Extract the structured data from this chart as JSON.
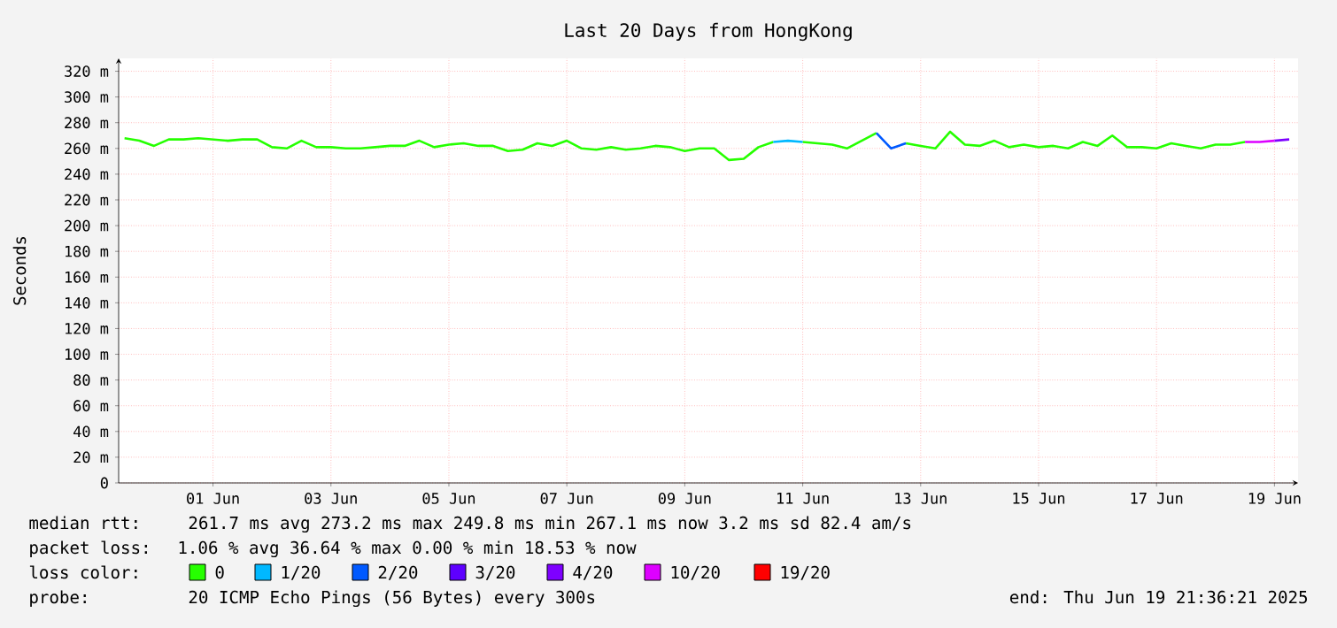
{
  "chart_data": {
    "type": "line",
    "title": "Last 20 Days from HongKong",
    "ylabel": "Seconds",
    "legend_title": "loss color:",
    "legend": "bottom",
    "grid": true,
    "marker": "none",
    "line_style": "solid",
    "xlim": [
      "2025-05-30T21:36",
      "2025-06-19T21:36"
    ],
    "xticks": [
      {
        "value": "2025-06-01T12:00",
        "label": "01 Jun"
      },
      {
        "value": "2025-06-03T12:00",
        "label": "03 Jun"
      },
      {
        "value": "2025-06-05T12:00",
        "label": "05 Jun"
      },
      {
        "value": "2025-06-07T12:00",
        "label": "07 Jun"
      },
      {
        "value": "2025-06-09T12:00",
        "label": "09 Jun"
      },
      {
        "value": "2025-06-11T12:00",
        "label": "11 Jun"
      },
      {
        "value": "2025-06-13T12:00",
        "label": "13 Jun"
      },
      {
        "value": "2025-06-15T12:00",
        "label": "15 Jun"
      },
      {
        "value": "2025-06-17T12:00",
        "label": "17 Jun"
      },
      {
        "value": "2025-06-19T12:00",
        "label": "19 Jun"
      }
    ],
    "ylim": [
      0,
      330
    ],
    "yticks": [
      0,
      {
        "value": 20,
        "label": "20 m"
      },
      {
        "value": 40,
        "label": "40 m"
      },
      {
        "value": 60,
        "label": "60 m"
      },
      {
        "value": 80,
        "label": "80 m"
      },
      {
        "value": 100,
        "label": "100 m"
      },
      {
        "value": 120,
        "label": "120 m"
      },
      {
        "value": 140,
        "label": "140 m"
      },
      {
        "value": 160,
        "label": "160 m"
      },
      {
        "value": 180,
        "label": "180 m"
      },
      {
        "value": 200,
        "label": "200 m"
      },
      {
        "value": 220,
        "label": "220 m"
      },
      {
        "value": 240,
        "label": "240 m"
      },
      {
        "value": 260,
        "label": "260 m"
      },
      {
        "value": 280,
        "label": "280 m"
      },
      {
        "value": 300,
        "label": "300 m"
      },
      {
        "value": 320,
        "label": "320 m"
      }
    ],
    "x": [
      "2025-05-31T00:00",
      "2025-05-31T06:00",
      "2025-05-31T12:00",
      "2025-05-31T18:00",
      "2025-06-01T00:00",
      "2025-06-01T06:00",
      "2025-06-01T12:00",
      "2025-06-01T18:00",
      "2025-06-02T00:00",
      "2025-06-02T06:00",
      "2025-06-02T12:00",
      "2025-06-02T18:00",
      "2025-06-03T00:00",
      "2025-06-03T06:00",
      "2025-06-03T12:00",
      "2025-06-03T18:00",
      "2025-06-04T00:00",
      "2025-06-04T06:00",
      "2025-06-04T12:00",
      "2025-06-04T18:00",
      "2025-06-05T00:00",
      "2025-06-05T06:00",
      "2025-06-05T12:00",
      "2025-06-05T18:00",
      "2025-06-06T00:00",
      "2025-06-06T06:00",
      "2025-06-06T12:00",
      "2025-06-06T18:00",
      "2025-06-07T00:00",
      "2025-06-07T06:00",
      "2025-06-07T12:00",
      "2025-06-07T18:00",
      "2025-06-08T00:00",
      "2025-06-08T06:00",
      "2025-06-08T12:00",
      "2025-06-08T18:00",
      "2025-06-09T00:00",
      "2025-06-09T06:00",
      "2025-06-09T12:00",
      "2025-06-09T18:00",
      "2025-06-10T00:00",
      "2025-06-10T06:00",
      "2025-06-10T12:00",
      "2025-06-10T18:00",
      "2025-06-11T00:00",
      "2025-06-11T06:00",
      "2025-06-11T12:00",
      "2025-06-11T18:00",
      "2025-06-12T00:00",
      "2025-06-12T06:00",
      "2025-06-12T12:00",
      "2025-06-12T18:00",
      "2025-06-13T00:00",
      "2025-06-13T06:00",
      "2025-06-13T12:00",
      "2025-06-13T18:00",
      "2025-06-14T00:00",
      "2025-06-14T06:00",
      "2025-06-14T12:00",
      "2025-06-14T18:00",
      "2025-06-15T00:00",
      "2025-06-15T06:00",
      "2025-06-15T12:00",
      "2025-06-15T18:00",
      "2025-06-16T00:00",
      "2025-06-16T06:00",
      "2025-06-16T12:00",
      "2025-06-16T18:00",
      "2025-06-17T00:00",
      "2025-06-17T06:00",
      "2025-06-17T12:00",
      "2025-06-17T18:00",
      "2025-06-18T00:00",
      "2025-06-18T06:00",
      "2025-06-18T12:00",
      "2025-06-18T18:00",
      "2025-06-19T00:00",
      "2025-06-19T06:00",
      "2025-06-19T12:00",
      "2025-06-19T18:00"
    ],
    "series": [
      {
        "name": "0",
        "color": "#26ff00",
        "values": [
          268,
          266,
          262,
          267,
          267,
          268,
          267,
          266,
          267,
          267,
          261,
          260,
          266,
          261,
          261,
          260,
          260,
          261,
          262,
          262,
          266,
          261,
          263,
          264,
          262,
          262,
          258,
          259,
          264,
          262,
          266,
          260,
          259,
          261,
          259,
          260,
          262,
          261,
          258,
          260,
          260,
          251,
          252,
          261,
          265,
          null,
          265,
          264,
          263,
          260,
          266,
          272,
          null,
          264,
          262,
          260,
          273,
          263,
          262,
          266,
          261,
          263,
          261,
          262,
          260,
          265,
          262,
          270,
          261,
          261,
          260,
          264,
          262,
          260,
          263,
          263,
          265,
          null,
          null,
          null
        ]
      },
      {
        "name": "1/20",
        "color": "#00b8ff",
        "values": [
          null,
          null,
          null,
          null,
          null,
          null,
          null,
          null,
          null,
          null,
          null,
          null,
          null,
          null,
          null,
          null,
          null,
          null,
          null,
          null,
          null,
          null,
          null,
          null,
          null,
          null,
          null,
          null,
          null,
          null,
          null,
          null,
          null,
          null,
          null,
          null,
          null,
          null,
          null,
          null,
          null,
          null,
          null,
          null,
          265,
          266,
          265,
          null,
          null,
          null,
          null,
          null,
          null,
          null,
          null,
          null,
          null,
          null,
          null,
          null,
          null,
          null,
          null,
          null,
          null,
          null,
          null,
          null,
          null,
          null,
          null,
          null,
          null,
          null,
          null,
          null,
          null,
          null,
          null,
          null
        ]
      },
      {
        "name": "2/20",
        "color": "#0059ff",
        "values": [
          null,
          null,
          null,
          null,
          null,
          null,
          null,
          null,
          null,
          null,
          null,
          null,
          null,
          null,
          null,
          null,
          null,
          null,
          null,
          null,
          null,
          null,
          null,
          null,
          null,
          null,
          null,
          null,
          null,
          null,
          null,
          null,
          null,
          null,
          null,
          null,
          null,
          null,
          null,
          null,
          null,
          null,
          null,
          null,
          null,
          null,
          null,
          null,
          null,
          null,
          null,
          272,
          260,
          264,
          null,
          null,
          null,
          null,
          null,
          null,
          null,
          null,
          null,
          null,
          null,
          null,
          null,
          null,
          null,
          null,
          null,
          null,
          null,
          null,
          null,
          null,
          null,
          null,
          null,
          null
        ]
      },
      {
        "name": "3/20",
        "color": "#5e00ff",
        "values": [
          null,
          null,
          null,
          null,
          null,
          null,
          null,
          null,
          null,
          null,
          null,
          null,
          null,
          null,
          null,
          null,
          null,
          null,
          null,
          null,
          null,
          null,
          null,
          null,
          null,
          null,
          null,
          null,
          null,
          null,
          null,
          null,
          null,
          null,
          null,
          null,
          null,
          null,
          null,
          null,
          null,
          null,
          null,
          null,
          null,
          null,
          null,
          null,
          null,
          null,
          null,
          null,
          null,
          null,
          null,
          null,
          null,
          null,
          null,
          null,
          null,
          null,
          null,
          null,
          null,
          null,
          null,
          null,
          null,
          null,
          null,
          null,
          null,
          null,
          null,
          null,
          null,
          null,
          null,
          null
        ]
      },
      {
        "name": "4/20",
        "color": "#7e00ff",
        "values": [
          null,
          null,
          null,
          null,
          null,
          null,
          null,
          null,
          null,
          null,
          null,
          null,
          null,
          null,
          null,
          null,
          null,
          null,
          null,
          null,
          null,
          null,
          null,
          null,
          null,
          null,
          null,
          null,
          null,
          null,
          null,
          null,
          null,
          null,
          null,
          null,
          null,
          null,
          null,
          null,
          null,
          null,
          null,
          null,
          null,
          null,
          null,
          null,
          null,
          null,
          null,
          null,
          null,
          null,
          null,
          null,
          null,
          null,
          null,
          null,
          null,
          null,
          null,
          null,
          null,
          null,
          null,
          null,
          null,
          null,
          null,
          null,
          null,
          null,
          null,
          null,
          null,
          null,
          266,
          267
        ]
      },
      {
        "name": "10/20",
        "color": "#dd00ff",
        "values": [
          null,
          null,
          null,
          null,
          null,
          null,
          null,
          null,
          null,
          null,
          null,
          null,
          null,
          null,
          null,
          null,
          null,
          null,
          null,
          null,
          null,
          null,
          null,
          null,
          null,
          null,
          null,
          null,
          null,
          null,
          null,
          null,
          null,
          null,
          null,
          null,
          null,
          null,
          null,
          null,
          null,
          null,
          null,
          null,
          null,
          null,
          null,
          null,
          null,
          null,
          null,
          null,
          null,
          null,
          null,
          null,
          null,
          null,
          null,
          null,
          null,
          null,
          null,
          null,
          null,
          null,
          null,
          null,
          null,
          null,
          null,
          null,
          null,
          null,
          null,
          null,
          265,
          265,
          266,
          null
        ]
      },
      {
        "name": "19/20",
        "color": "#ff0000",
        "values": [
          null,
          null,
          null,
          null,
          null,
          null,
          null,
          null,
          null,
          null,
          null,
          null,
          null,
          null,
          null,
          null,
          null,
          null,
          null,
          null,
          null,
          null,
          null,
          null,
          null,
          null,
          null,
          null,
          null,
          null,
          null,
          null,
          null,
          null,
          null,
          null,
          null,
          null,
          null,
          null,
          null,
          null,
          null,
          null,
          null,
          null,
          null,
          null,
          null,
          null,
          null,
          null,
          null,
          null,
          null,
          null,
          null,
          null,
          null,
          null,
          null,
          null,
          null,
          null,
          null,
          null,
          null,
          null,
          null,
          null,
          null,
          null,
          null,
          null,
          null,
          null,
          null,
          null,
          null,
          null
        ]
      }
    ],
    "annotations": [
      "median rtt:",
      "261.7 ms avg  273.2 ms max  249.8 ms min  267.1 ms now  3.2 ms sd  82.4   am/s",
      "packet loss:",
      "1.06 % avg  36.64 % max  0.00 % min  18.53 % now",
      "probe:",
      "20 ICMP Echo Pings (56 Bytes) every 300s",
      "end: Thu Jun 19 21:36:21 2025"
    ]
  }
}
